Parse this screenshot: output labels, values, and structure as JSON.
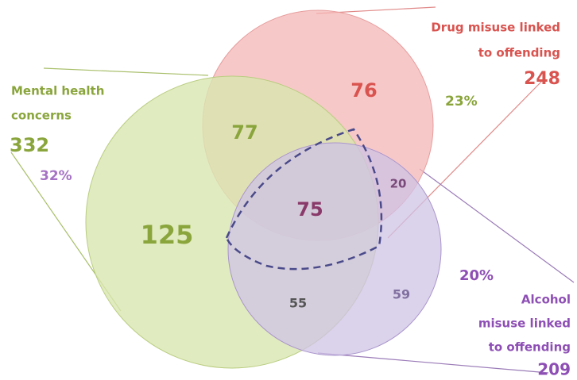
{
  "sets": [
    {
      "label": [
        "Mental health",
        "concerns"
      ],
      "total": 332,
      "share": "32%"
    },
    {
      "label": [
        "Drug misuse linked",
        "to offending"
      ],
      "total": 248,
      "share": "23%"
    },
    {
      "label": [
        "Alcohol",
        "misuse linked",
        "to offending"
      ],
      "total": 209,
      "share": "20%"
    }
  ],
  "regions": {
    "mental_only": 125,
    "mental_drug": 77,
    "drug_only": 76,
    "all_three": 75,
    "drug_alcohol": 20,
    "mental_alcohol": 55,
    "alcohol_only": 59
  }
}
